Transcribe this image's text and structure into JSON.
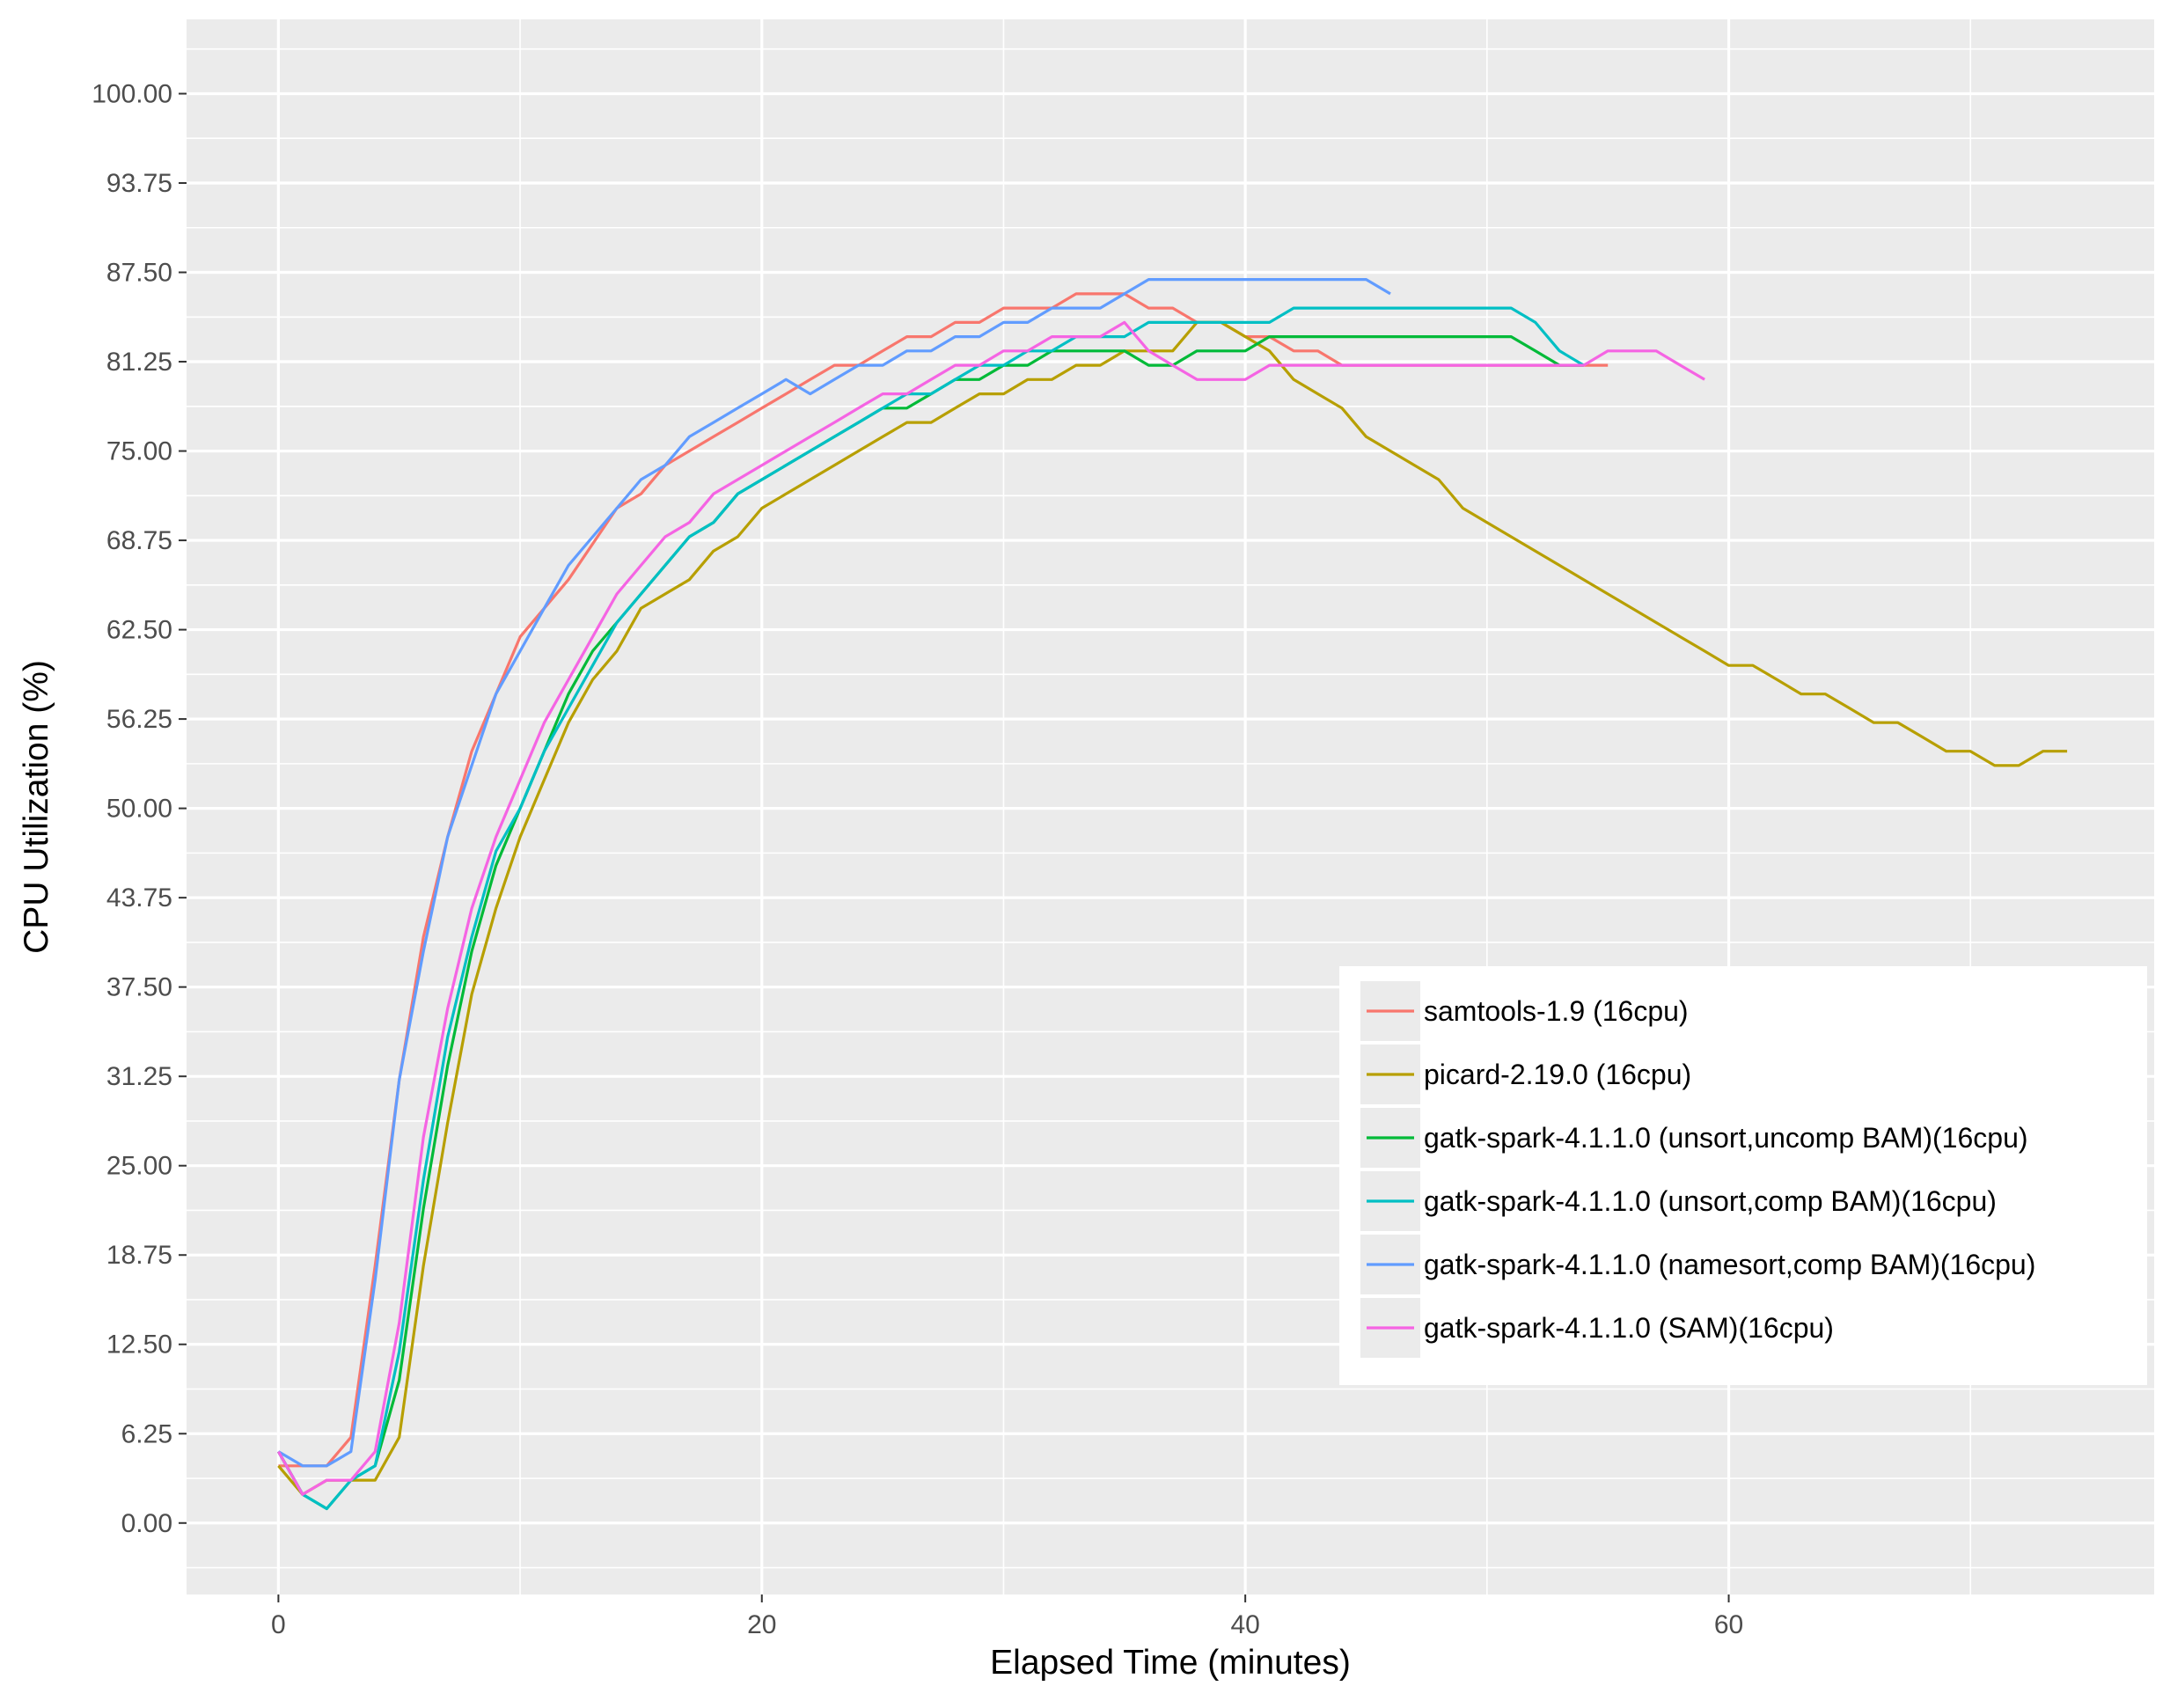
{
  "chart_data": {
    "type": "line",
    "title": "",
    "xlabel": "Elapsed Time (minutes)",
    "ylabel": "CPU Utilization (%)",
    "xlim": [
      -3.8,
      77.6
    ],
    "ylim": [
      -5.0,
      105.2
    ],
    "x_ticks": [
      0,
      20,
      40,
      60
    ],
    "x_tick_labels": [
      "0",
      "20",
      "40",
      "60"
    ],
    "y_ticks": [
      0,
      6.25,
      12.5,
      18.75,
      25,
      31.25,
      37.5,
      43.75,
      50,
      56.25,
      62.5,
      68.75,
      75,
      81.25,
      87.5,
      93.75,
      100
    ],
    "y_tick_labels": [
      "0.00",
      "6.25",
      "12.50",
      "18.75",
      "25.00",
      "31.25",
      "37.50",
      "43.75",
      "50.00",
      "56.25",
      "62.50",
      "68.75",
      "75.00",
      "81.25",
      "87.50",
      "93.75",
      "100.00"
    ],
    "grid": true,
    "legend_position": "bottom-right",
    "series": [
      {
        "name": "samtools-1.9 (16cpu)",
        "color": "#F8766D",
        "points": [
          [
            0,
            4
          ],
          [
            1,
            4
          ],
          [
            2,
            4
          ],
          [
            3,
            6
          ],
          [
            4,
            18
          ],
          [
            5,
            31
          ],
          [
            6,
            41
          ],
          [
            7,
            48
          ],
          [
            8,
            54
          ],
          [
            9,
            58
          ],
          [
            10,
            62
          ],
          [
            12,
            66
          ],
          [
            14,
            71
          ],
          [
            15,
            72
          ],
          [
            16,
            74
          ],
          [
            17,
            75
          ],
          [
            18,
            76
          ],
          [
            19,
            77
          ],
          [
            20,
            78
          ],
          [
            21,
            79
          ],
          [
            22,
            80
          ],
          [
            23,
            81
          ],
          [
            24,
            81
          ],
          [
            25,
            82
          ],
          [
            26,
            83
          ],
          [
            27,
            83
          ],
          [
            28,
            84
          ],
          [
            29,
            84
          ],
          [
            30,
            85
          ],
          [
            31,
            85
          ],
          [
            32,
            85
          ],
          [
            33,
            86
          ],
          [
            34,
            86
          ],
          [
            35,
            86
          ],
          [
            36,
            85
          ],
          [
            37,
            85
          ],
          [
            38,
            84
          ],
          [
            39,
            84
          ],
          [
            40,
            83
          ],
          [
            41,
            83
          ],
          [
            42,
            82
          ],
          [
            43,
            82
          ],
          [
            44,
            81
          ],
          [
            45,
            81
          ],
          [
            50,
            81
          ],
          [
            55,
            81
          ]
        ]
      },
      {
        "name": "picard-2.19.0 (16cpu)",
        "color": "#B79F00",
        "points": [
          [
            0,
            4
          ],
          [
            1,
            2
          ],
          [
            2,
            3
          ],
          [
            3,
            3
          ],
          [
            4,
            3
          ],
          [
            5,
            6
          ],
          [
            6,
            18
          ],
          [
            7,
            28
          ],
          [
            8,
            37
          ],
          [
            9,
            43
          ],
          [
            10,
            48
          ],
          [
            11,
            52
          ],
          [
            12,
            56
          ],
          [
            13,
            59
          ],
          [
            14,
            61
          ],
          [
            15,
            64
          ],
          [
            16,
            65
          ],
          [
            17,
            66
          ],
          [
            18,
            68
          ],
          [
            19,
            69
          ],
          [
            20,
            71
          ],
          [
            21,
            72
          ],
          [
            22,
            73
          ],
          [
            23,
            74
          ],
          [
            24,
            75
          ],
          [
            25,
            76
          ],
          [
            26,
            77
          ],
          [
            27,
            77
          ],
          [
            28,
            78
          ],
          [
            29,
            79
          ],
          [
            30,
            79
          ],
          [
            31,
            80
          ],
          [
            32,
            80
          ],
          [
            33,
            81
          ],
          [
            34,
            81
          ],
          [
            35,
            82
          ],
          [
            36,
            82
          ],
          [
            37,
            82
          ],
          [
            38,
            84
          ],
          [
            39,
            84
          ],
          [
            40,
            83
          ],
          [
            41,
            82
          ],
          [
            42,
            80
          ],
          [
            43,
            79
          ],
          [
            44,
            78
          ],
          [
            45,
            76
          ],
          [
            46,
            75
          ],
          [
            47,
            74
          ],
          [
            48,
            73
          ],
          [
            49,
            71
          ],
          [
            50,
            70
          ],
          [
            51,
            69
          ],
          [
            52,
            68
          ],
          [
            53,
            67
          ],
          [
            54,
            66
          ],
          [
            55,
            65
          ],
          [
            56,
            64
          ],
          [
            57,
            63
          ],
          [
            58,
            62
          ],
          [
            59,
            61
          ],
          [
            60,
            60
          ],
          [
            61,
            60
          ],
          [
            62,
            59
          ],
          [
            63,
            58
          ],
          [
            64,
            58
          ],
          [
            65,
            57
          ],
          [
            66,
            56
          ],
          [
            67,
            56
          ],
          [
            68,
            55
          ],
          [
            69,
            54
          ],
          [
            70,
            54
          ],
          [
            71,
            53
          ],
          [
            72,
            53
          ],
          [
            73,
            54
          ],
          [
            74,
            54
          ]
        ]
      },
      {
        "name": "gatk-spark-4.1.1.0 (unsort,uncomp BAM)(16cpu)",
        "color": "#00BA38",
        "points": [
          [
            0,
            5
          ],
          [
            1,
            2
          ],
          [
            2,
            1
          ],
          [
            3,
            3
          ],
          [
            4,
            4
          ],
          [
            5,
            10
          ],
          [
            6,
            22
          ],
          [
            7,
            32
          ],
          [
            8,
            40
          ],
          [
            9,
            46
          ],
          [
            10,
            50
          ],
          [
            11,
            54
          ],
          [
            12,
            58
          ],
          [
            13,
            61
          ],
          [
            14,
            63
          ],
          [
            15,
            65
          ],
          [
            16,
            67
          ],
          [
            17,
            69
          ],
          [
            18,
            70
          ],
          [
            19,
            72
          ],
          [
            20,
            73
          ],
          [
            21,
            74
          ],
          [
            22,
            75
          ],
          [
            23,
            76
          ],
          [
            24,
            77
          ],
          [
            25,
            78
          ],
          [
            26,
            78
          ],
          [
            27,
            79
          ],
          [
            28,
            80
          ],
          [
            29,
            80
          ],
          [
            30,
            81
          ],
          [
            31,
            81
          ],
          [
            32,
            82
          ],
          [
            33,
            82
          ],
          [
            34,
            82
          ],
          [
            35,
            82
          ],
          [
            36,
            81
          ],
          [
            37,
            81
          ],
          [
            38,
            82
          ],
          [
            39,
            82
          ],
          [
            40,
            82
          ],
          [
            41,
            83
          ],
          [
            42,
            83
          ],
          [
            45,
            83
          ],
          [
            50,
            83
          ],
          [
            51,
            83
          ],
          [
            52,
            82
          ],
          [
            53,
            81
          ],
          [
            54,
            81
          ]
        ]
      },
      {
        "name": "gatk-spark-4.1.1.0 (unsort,comp BAM)(16cpu)",
        "color": "#00BFC4",
        "points": [
          [
            0,
            5
          ],
          [
            1,
            2
          ],
          [
            2,
            1
          ],
          [
            3,
            3
          ],
          [
            4,
            4
          ],
          [
            5,
            12
          ],
          [
            6,
            24
          ],
          [
            7,
            34
          ],
          [
            8,
            41
          ],
          [
            9,
            47
          ],
          [
            10,
            50
          ],
          [
            11,
            54
          ],
          [
            12,
            57
          ],
          [
            13,
            60
          ],
          [
            14,
            63
          ],
          [
            15,
            65
          ],
          [
            16,
            67
          ],
          [
            17,
            69
          ],
          [
            18,
            70
          ],
          [
            19,
            72
          ],
          [
            20,
            73
          ],
          [
            21,
            74
          ],
          [
            22,
            75
          ],
          [
            23,
            76
          ],
          [
            24,
            77
          ],
          [
            25,
            78
          ],
          [
            26,
            79
          ],
          [
            27,
            79
          ],
          [
            28,
            80
          ],
          [
            29,
            81
          ],
          [
            30,
            81
          ],
          [
            31,
            82
          ],
          [
            32,
            82
          ],
          [
            33,
            83
          ],
          [
            34,
            83
          ],
          [
            35,
            83
          ],
          [
            36,
            84
          ],
          [
            37,
            84
          ],
          [
            38,
            84
          ],
          [
            39,
            84
          ],
          [
            40,
            84
          ],
          [
            41,
            84
          ],
          [
            42,
            85
          ],
          [
            45,
            85
          ],
          [
            50,
            85
          ],
          [
            51,
            85
          ],
          [
            52,
            84
          ],
          [
            53,
            82
          ],
          [
            54,
            81
          ]
        ]
      },
      {
        "name": "gatk-spark-4.1.1.0 (namesort,comp BAM)(16cpu)",
        "color": "#619CFF",
        "points": [
          [
            0,
            5
          ],
          [
            1,
            4
          ],
          [
            2,
            4
          ],
          [
            3,
            5
          ],
          [
            4,
            17
          ],
          [
            5,
            31
          ],
          [
            6,
            40
          ],
          [
            7,
            48
          ],
          [
            8,
            53
          ],
          [
            9,
            58
          ],
          [
            10,
            61
          ],
          [
            11,
            64
          ],
          [
            12,
            67
          ],
          [
            13,
            69
          ],
          [
            14,
            71
          ],
          [
            15,
            73
          ],
          [
            16,
            74
          ],
          [
            17,
            76
          ],
          [
            18,
            77
          ],
          [
            19,
            78
          ],
          [
            20,
            79
          ],
          [
            21,
            80
          ],
          [
            22,
            79
          ],
          [
            23,
            80
          ],
          [
            24,
            81
          ],
          [
            25,
            81
          ],
          [
            26,
            82
          ],
          [
            27,
            82
          ],
          [
            28,
            83
          ],
          [
            29,
            83
          ],
          [
            30,
            84
          ],
          [
            31,
            84
          ],
          [
            32,
            85
          ],
          [
            33,
            85
          ],
          [
            34,
            85
          ],
          [
            35,
            86
          ],
          [
            36,
            87
          ],
          [
            40,
            87
          ],
          [
            45,
            87
          ],
          [
            46,
            86
          ]
        ]
      },
      {
        "name": "gatk-spark-4.1.1.0 (SAM)(16cpu)",
        "color": "#F564E3",
        "points": [
          [
            0,
            5
          ],
          [
            1,
            2
          ],
          [
            2,
            3
          ],
          [
            3,
            3
          ],
          [
            4,
            5
          ],
          [
            5,
            14
          ],
          [
            6,
            27
          ],
          [
            7,
            36
          ],
          [
            8,
            43
          ],
          [
            9,
            48
          ],
          [
            10,
            52
          ],
          [
            11,
            56
          ],
          [
            12,
            59
          ],
          [
            13,
            62
          ],
          [
            14,
            65
          ],
          [
            15,
            67
          ],
          [
            16,
            69
          ],
          [
            17,
            70
          ],
          [
            18,
            72
          ],
          [
            19,
            73
          ],
          [
            20,
            74
          ],
          [
            21,
            75
          ],
          [
            22,
            76
          ],
          [
            23,
            77
          ],
          [
            24,
            78
          ],
          [
            25,
            79
          ],
          [
            26,
            79
          ],
          [
            27,
            80
          ],
          [
            28,
            81
          ],
          [
            29,
            81
          ],
          [
            30,
            82
          ],
          [
            31,
            82
          ],
          [
            32,
            83
          ],
          [
            33,
            83
          ],
          [
            34,
            83
          ],
          [
            35,
            84
          ],
          [
            36,
            82
          ],
          [
            37,
            81
          ],
          [
            38,
            80
          ],
          [
            39,
            80
          ],
          [
            40,
            80
          ],
          [
            41,
            81
          ],
          [
            42,
            81
          ],
          [
            45,
            81
          ],
          [
            50,
            81
          ],
          [
            54,
            81
          ],
          [
            55,
            82
          ],
          [
            56,
            82
          ],
          [
            57,
            82
          ],
          [
            58,
            81
          ],
          [
            59,
            80
          ]
        ]
      }
    ]
  }
}
